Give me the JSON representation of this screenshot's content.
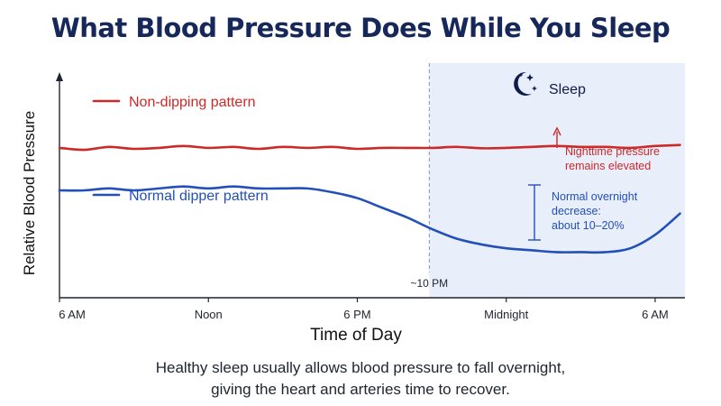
{
  "title": "What Blood Pressure Does While You Sleep",
  "caption": {
    "line1": "Healthy sleep usually allows blood pressure to fall overnight,",
    "line2": "giving the heart and arteries time to recover."
  },
  "colors": {
    "title": "#16285a",
    "non_dipping": "#cc2a28",
    "normal_dipper": "#2350b8",
    "sleep_band": "#e8eefa",
    "axis": "#1f2430",
    "marker_line": "#8a93a8"
  },
  "chart_data": {
    "type": "line",
    "xlabel": "Time of Day",
    "ylabel": "Relative Blood Pressure",
    "x_ticks": [
      {
        "hour": 6,
        "label": "6 AM"
      },
      {
        "hour": 12,
        "label": "Noon"
      },
      {
        "hour": 18,
        "label": "6 PM"
      },
      {
        "hour": 24,
        "label": "Midnight"
      },
      {
        "hour": 30,
        "label": "6 AM"
      }
    ],
    "xlim": [
      6,
      31.2
    ],
    "ylim": [
      0,
      100
    ],
    "grid": false,
    "sleep_period": {
      "start": 20.9,
      "end": 31.2,
      "label": "Sleep",
      "icon": "moon-stars-icon"
    },
    "sleep_onset_marker": {
      "hour": 20.9,
      "label": "~10 PM"
    },
    "series": [
      {
        "name": "Non-dipping pattern",
        "color": "#cc2a28",
        "points": [
          [
            6,
            72
          ],
          [
            7,
            71
          ],
          [
            8,
            72.5
          ],
          [
            9,
            71.5
          ],
          [
            10,
            72
          ],
          [
            11,
            73
          ],
          [
            12,
            72
          ],
          [
            13,
            72.5
          ],
          [
            14,
            71.5
          ],
          [
            15,
            72.5
          ],
          [
            16,
            72
          ],
          [
            17,
            72.5
          ],
          [
            18,
            71.5
          ],
          [
            19,
            72
          ],
          [
            20,
            72
          ],
          [
            21,
            72
          ],
          [
            22,
            72.5
          ],
          [
            23,
            71.8
          ],
          [
            24,
            72
          ],
          [
            25,
            72.5
          ],
          [
            26,
            73
          ],
          [
            27,
            72.5
          ],
          [
            28,
            72.5
          ],
          [
            29,
            72
          ],
          [
            30,
            73
          ],
          [
            31,
            73.5
          ]
        ]
      },
      {
        "name": "Normal dipper pattern",
        "color": "#2350b8",
        "points": [
          [
            6,
            50
          ],
          [
            7,
            50
          ],
          [
            8,
            51
          ],
          [
            9,
            50
          ],
          [
            10,
            51
          ],
          [
            11,
            52
          ],
          [
            12,
            51
          ],
          [
            13,
            52
          ],
          [
            14,
            51
          ],
          [
            15,
            51
          ],
          [
            16,
            51
          ],
          [
            17,
            49
          ],
          [
            18,
            46
          ],
          [
            19,
            41
          ],
          [
            20,
            36
          ],
          [
            21,
            30
          ],
          [
            22,
            25
          ],
          [
            23,
            22
          ],
          [
            24,
            20
          ],
          [
            25,
            19
          ],
          [
            26,
            18
          ],
          [
            27,
            18
          ],
          [
            28,
            18
          ],
          [
            29,
            20
          ],
          [
            30,
            27
          ],
          [
            31,
            38
          ]
        ]
      }
    ],
    "annotations": [
      {
        "id": "non-dipping-label",
        "text": "Non-dipping pattern"
      },
      {
        "id": "normal-dipper-label",
        "text": "Normal dipper pattern"
      },
      {
        "id": "elevated-note",
        "lines": [
          "Nighttime pressure",
          "remains elevated"
        ]
      },
      {
        "id": "decrease-note",
        "lines": [
          "Normal overnight",
          "decrease:",
          "about 10–20%"
        ]
      }
    ]
  }
}
